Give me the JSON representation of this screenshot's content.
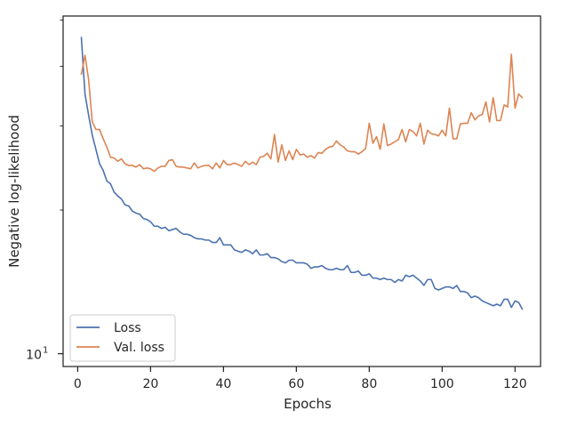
{
  "chart_data": {
    "type": "line",
    "title": "",
    "xlabel": "Epochs",
    "ylabel": "Negative log-likelihood",
    "xlim": [
      -4,
      127
    ],
    "ylim": [
      9.4,
      51
    ],
    "y_scale": "log",
    "grid": false,
    "legend_position": "lower-left",
    "x_ticks": [
      {
        "value": 0,
        "label": "0"
      },
      {
        "value": 20,
        "label": "20"
      },
      {
        "value": 40,
        "label": "40"
      },
      {
        "value": 60,
        "label": "60"
      },
      {
        "value": 80,
        "label": "80"
      },
      {
        "value": 100,
        "label": "100"
      },
      {
        "value": 120,
        "label": "120"
      }
    ],
    "y_ticks": [
      {
        "value": 10,
        "label": "10",
        "superscript": "1"
      }
    ],
    "series": [
      {
        "name": "Loss",
        "color": "#4c72b0",
        "points": [
          [
            1,
            46.0
          ],
          [
            2,
            35.0
          ],
          [
            3,
            31.6
          ],
          [
            4,
            28.7
          ],
          [
            5,
            26.8
          ],
          [
            6,
            25.0
          ],
          [
            7,
            24.2
          ],
          [
            8,
            23.0
          ],
          [
            9,
            22.7
          ],
          [
            10,
            21.8
          ],
          [
            11,
            21.4
          ],
          [
            12,
            21.1
          ],
          [
            13,
            20.5
          ],
          [
            14,
            20.4
          ],
          [
            15,
            19.9
          ],
          [
            16,
            19.7
          ],
          [
            17,
            19.6
          ],
          [
            18,
            19.2
          ],
          [
            19,
            19.1
          ],
          [
            20,
            18.9
          ],
          [
            21,
            18.5
          ],
          [
            22,
            18.5
          ],
          [
            23,
            18.3
          ],
          [
            24,
            18.4
          ],
          [
            25,
            18.1
          ],
          [
            26,
            18.2
          ],
          [
            27,
            18.3
          ],
          [
            28,
            18.0
          ],
          [
            29,
            17.8
          ],
          [
            30,
            17.8
          ],
          [
            31,
            17.7
          ],
          [
            32,
            17.5
          ],
          [
            33,
            17.4
          ],
          [
            34,
            17.4
          ],
          [
            35,
            17.3
          ],
          [
            36,
            17.3
          ],
          [
            37,
            17.1
          ],
          [
            38,
            17.1
          ],
          [
            39,
            17.5
          ],
          [
            40,
            16.9
          ],
          [
            41,
            16.9
          ],
          [
            42,
            16.9
          ],
          [
            43,
            16.5
          ],
          [
            44,
            16.4
          ],
          [
            45,
            16.3
          ],
          [
            46,
            16.5
          ],
          [
            47,
            16.4
          ],
          [
            48,
            16.2
          ],
          [
            49,
            16.5
          ],
          [
            50,
            16.1
          ],
          [
            51,
            16.1
          ],
          [
            52,
            16.2
          ],
          [
            53,
            15.9
          ],
          [
            54,
            15.9
          ],
          [
            55,
            15.8
          ],
          [
            56,
            15.6
          ],
          [
            57,
            15.5
          ],
          [
            58,
            15.7
          ],
          [
            59,
            15.7
          ],
          [
            60,
            15.5
          ],
          [
            61,
            15.5
          ],
          [
            62,
            15.5
          ],
          [
            63,
            15.4
          ],
          [
            64,
            15.1
          ],
          [
            65,
            15.2
          ],
          [
            66,
            15.2
          ],
          [
            67,
            15.3
          ],
          [
            68,
            15.1
          ],
          [
            69,
            15.0
          ],
          [
            70,
            15.0
          ],
          [
            71,
            15.1
          ],
          [
            72,
            15.0
          ],
          [
            73,
            15.0
          ],
          [
            74,
            15.3
          ],
          [
            75,
            14.8
          ],
          [
            76,
            14.8
          ],
          [
            77,
            14.9
          ],
          [
            78,
            14.6
          ],
          [
            79,
            14.6
          ],
          [
            80,
            14.7
          ],
          [
            81,
            14.4
          ],
          [
            82,
            14.4
          ],
          [
            83,
            14.3
          ],
          [
            84,
            14.4
          ],
          [
            85,
            14.3
          ],
          [
            86,
            14.3
          ],
          [
            87,
            14.1
          ],
          [
            88,
            14.3
          ],
          [
            89,
            14.2
          ],
          [
            90,
            14.6
          ],
          [
            91,
            14.5
          ],
          [
            92,
            14.6
          ],
          [
            93,
            14.4
          ],
          [
            94,
            14.2
          ],
          [
            95,
            13.9
          ],
          [
            96,
            14.3
          ],
          [
            97,
            14.3
          ],
          [
            98,
            13.7
          ],
          [
            99,
            13.6
          ],
          [
            100,
            13.7
          ],
          [
            101,
            13.8
          ],
          [
            102,
            13.8
          ],
          [
            103,
            13.7
          ],
          [
            104,
            13.9
          ],
          [
            105,
            13.5
          ],
          [
            106,
            13.5
          ],
          [
            107,
            13.4
          ],
          [
            108,
            13.1
          ],
          [
            109,
            13.2
          ],
          [
            110,
            13.1
          ],
          [
            111,
            12.9
          ],
          [
            112,
            12.8
          ],
          [
            113,
            12.7
          ],
          [
            114,
            12.6
          ],
          [
            115,
            12.7
          ],
          [
            116,
            12.6
          ],
          [
            117,
            13.0
          ],
          [
            118,
            13.0
          ],
          [
            119,
            12.5
          ],
          [
            120,
            12.9
          ],
          [
            121,
            12.8
          ],
          [
            122,
            12.4
          ]
        ]
      },
      {
        "name": "Val. loss",
        "color": "#dd8452",
        "points": [
          [
            1,
            38.5
          ],
          [
            2,
            42.2
          ],
          [
            3,
            37.5
          ],
          [
            4,
            30.6
          ],
          [
            5,
            29.5
          ],
          [
            6,
            29.5
          ],
          [
            7,
            28.2
          ],
          [
            8,
            27.1
          ],
          [
            9,
            25.8
          ],
          [
            10,
            25.7
          ],
          [
            11,
            25.3
          ],
          [
            12,
            25.6
          ],
          [
            13,
            25.0
          ],
          [
            14,
            24.8
          ],
          [
            15,
            24.8
          ],
          [
            16,
            24.6
          ],
          [
            17,
            24.9
          ],
          [
            18,
            24.4
          ],
          [
            19,
            24.5
          ],
          [
            20,
            24.4
          ],
          [
            21,
            24.1
          ],
          [
            22,
            24.5
          ],
          [
            23,
            24.7
          ],
          [
            24,
            24.7
          ],
          [
            25,
            25.4
          ],
          [
            26,
            25.5
          ],
          [
            27,
            24.7
          ],
          [
            28,
            24.6
          ],
          [
            29,
            24.6
          ],
          [
            30,
            24.5
          ],
          [
            31,
            24.4
          ],
          [
            32,
            25.1
          ],
          [
            33,
            24.5
          ],
          [
            34,
            24.7
          ],
          [
            35,
            24.8
          ],
          [
            36,
            24.8
          ],
          [
            37,
            24.4
          ],
          [
            38,
            25.1
          ],
          [
            39,
            24.5
          ],
          [
            40,
            25.4
          ],
          [
            41,
            24.9
          ],
          [
            42,
            24.9
          ],
          [
            43,
            25.1
          ],
          [
            44,
            24.9
          ],
          [
            45,
            24.7
          ],
          [
            46,
            25.3
          ],
          [
            47,
            24.9
          ],
          [
            48,
            25.2
          ],
          [
            49,
            24.9
          ],
          [
            50,
            25.8
          ],
          [
            51,
            25.9
          ],
          [
            52,
            26.3
          ],
          [
            53,
            25.6
          ],
          [
            54,
            28.8
          ],
          [
            55,
            25.2
          ],
          [
            56,
            27.4
          ],
          [
            57,
            25.4
          ],
          [
            58,
            26.6
          ],
          [
            59,
            25.5
          ],
          [
            60,
            26.8
          ],
          [
            61,
            26.1
          ],
          [
            62,
            26.2
          ],
          [
            63,
            25.8
          ],
          [
            64,
            26.0
          ],
          [
            65,
            25.7
          ],
          [
            66,
            26.4
          ],
          [
            67,
            26.3
          ],
          [
            68,
            26.8
          ],
          [
            69,
            27.1
          ],
          [
            70,
            27.2
          ],
          [
            71,
            27.9
          ],
          [
            72,
            27.4
          ],
          [
            73,
            27.1
          ],
          [
            74,
            26.6
          ],
          [
            75,
            26.5
          ],
          [
            76,
            26.5
          ],
          [
            77,
            26.2
          ],
          [
            78,
            26.5
          ],
          [
            79,
            26.9
          ],
          [
            80,
            30.4
          ],
          [
            81,
            27.6
          ],
          [
            82,
            28.5
          ],
          [
            83,
            26.8
          ],
          [
            84,
            30.3
          ],
          [
            85,
            27.3
          ],
          [
            86,
            27.5
          ],
          [
            87,
            27.8
          ],
          [
            88,
            28.1
          ],
          [
            89,
            29.5
          ],
          [
            90,
            27.8
          ],
          [
            91,
            29.5
          ],
          [
            92,
            29.2
          ],
          [
            93,
            28.6
          ],
          [
            94,
            30.4
          ],
          [
            95,
            27.5
          ],
          [
            96,
            29.4
          ],
          [
            97,
            28.9
          ],
          [
            98,
            28.8
          ],
          [
            99,
            28.6
          ],
          [
            100,
            29.4
          ],
          [
            101,
            28.6
          ],
          [
            102,
            32.7
          ],
          [
            103,
            28.2
          ],
          [
            104,
            28.2
          ],
          [
            105,
            30.3
          ],
          [
            106,
            30.4
          ],
          [
            107,
            30.4
          ],
          [
            108,
            32.0
          ],
          [
            109,
            30.9
          ],
          [
            110,
            31.5
          ],
          [
            111,
            31.7
          ],
          [
            112,
            33.7
          ],
          [
            113,
            30.6
          ],
          [
            114,
            34.4
          ],
          [
            115,
            30.8
          ],
          [
            116,
            30.8
          ],
          [
            117,
            33.2
          ],
          [
            118,
            32.9
          ],
          [
            119,
            42.4
          ],
          [
            120,
            32.7
          ],
          [
            121,
            35.0
          ],
          [
            122,
            34.4
          ]
        ]
      }
    ]
  }
}
